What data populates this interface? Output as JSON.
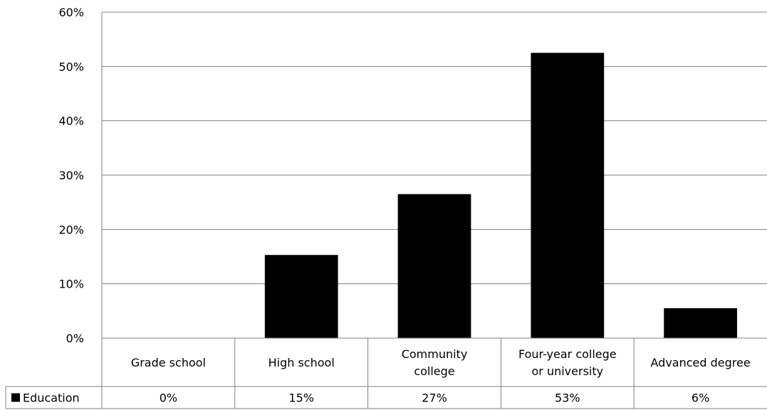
{
  "chart_data": {
    "type": "bar",
    "categories": [
      [
        "Grade school"
      ],
      [
        "High school"
      ],
      [
        "Community",
        "college"
      ],
      [
        "Four-year college",
        "or university"
      ],
      [
        "Advanced degree"
      ]
    ],
    "series": [
      {
        "name": "Education",
        "values": [
          0,
          15.3,
          26.5,
          52.5,
          5.5
        ],
        "value_labels": [
          "0%",
          "15%",
          "27%",
          "53%",
          "6%"
        ],
        "color": "#000000"
      }
    ],
    "y_ticks": [
      "0%",
      "10%",
      "20%",
      "30%",
      "40%",
      "50%",
      "60%"
    ],
    "ylim": [
      0,
      60
    ],
    "grid": true,
    "data_table": true,
    "gridline_color": "#808080"
  }
}
